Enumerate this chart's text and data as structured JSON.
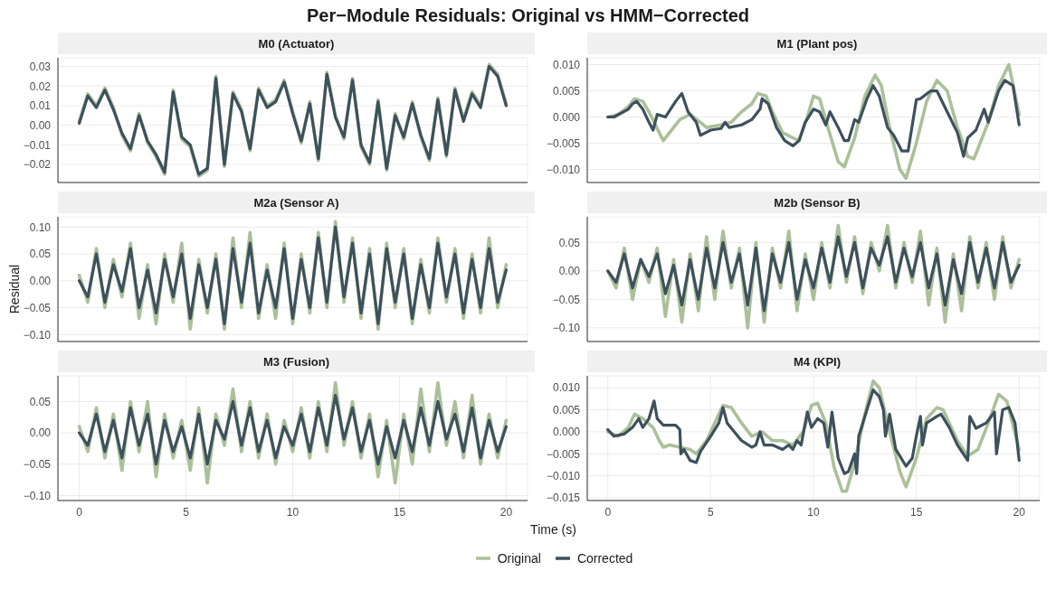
{
  "chart_data": [
    {
      "type": "line",
      "title": "M0 (Actuator)",
      "legend": "bottom",
      "annotations": [
        "Per−Module Residuals: Original vs HMM−Corrected"
      ],
      "tick_labels": "y",
      "grid": true,
      "xlim": [
        -1,
        21
      ],
      "xticks": [
        0,
        5,
        10,
        15,
        20
      ],
      "ylim": [
        -0.0292,
        0.0344
      ],
      "yticks": [
        {
          "value": -0.02,
          "label": "−0.02"
        },
        {
          "value": -0.01,
          "label": "−0.01"
        },
        {
          "value": 0,
          "label": "0.00"
        },
        {
          "value": 0.01,
          "label": "0.01"
        },
        {
          "value": 0.02,
          "label": "0.02"
        },
        {
          "value": 0.03,
          "label": "0.03"
        }
      ],
      "x": [
        0,
        0.4,
        0.8,
        1.2,
        1.6,
        2,
        2.4,
        2.8,
        3.2,
        3.6,
        4,
        4.4,
        4.8,
        5.2,
        5.6,
        6,
        6.4,
        6.8,
        7.2,
        7.6,
        8,
        8.4,
        8.8,
        9.2,
        9.6,
        10,
        10.4,
        10.8,
        11.2,
        11.6,
        12,
        12.4,
        12.8,
        13.2,
        13.6,
        14,
        14.4,
        14.8,
        15.2,
        15.6,
        16,
        16.4,
        16.8,
        17.2,
        17.6,
        18,
        18.4,
        18.8,
        19.2,
        19.6,
        20
      ],
      "series": [
        {
          "name": "Original",
          "color": "#abc09a",
          "values": [
            0.002,
            0.016,
            0.01,
            0.019,
            0.009,
            -0.005,
            -0.013,
            0.006,
            -0.009,
            -0.016,
            -0.025,
            0.018,
            -0.007,
            -0.011,
            -0.026,
            -0.023,
            0.025,
            -0.021,
            0.017,
            0.008,
            -0.013,
            0.019,
            0.01,
            0.013,
            0.023,
            0.007,
            -0.009,
            0.012,
            -0.018,
            0.027,
            0.005,
            -0.007,
            0.024,
            -0.011,
            -0.02,
            0.013,
            -0.023,
            0.006,
            -0.007,
            0.012,
            -0.006,
            -0.018,
            0.014,
            -0.016,
            0.019,
            0.003,
            0.017,
            0.01,
            0.031,
            0.026,
            0.011
          ]
        },
        {
          "name": "Corrected",
          "color": "#3d505c",
          "values": [
            0.001,
            0.015,
            0.009,
            0.018,
            0.008,
            -0.004,
            -0.012,
            0.005,
            -0.008,
            -0.015,
            -0.024,
            0.017,
            -0.006,
            -0.01,
            -0.025,
            -0.022,
            0.024,
            -0.02,
            0.016,
            0.007,
            -0.012,
            0.018,
            0.009,
            0.012,
            0.022,
            0.006,
            -0.008,
            0.011,
            -0.017,
            0.026,
            0.004,
            -0.006,
            0.023,
            -0.01,
            -0.019,
            0.012,
            -0.022,
            0.005,
            -0.006,
            0.011,
            -0.005,
            -0.017,
            0.013,
            -0.015,
            0.018,
            0.002,
            0.016,
            0.009,
            0.03,
            0.025,
            0.01
          ]
        }
      ]
    },
    {
      "type": "line",
      "title": "M1 (Plant pos)",
      "tick_labels": "y",
      "grid": true,
      "xlim": [
        -1,
        21
      ],
      "xticks": [
        0,
        5,
        10,
        15,
        20
      ],
      "ylim": [
        -0.0125,
        0.0113
      ],
      "yticks": [
        {
          "value": -0.01,
          "label": "−0.010"
        },
        {
          "value": -0.005,
          "label": "−0.005"
        },
        {
          "value": 0,
          "label": "0.000"
        },
        {
          "value": 0.005,
          "label": "0.005"
        },
        {
          "value": 0.01,
          "label": "0.010"
        }
      ],
      "series": [
        {
          "color": "#abc09a",
          "x": [
            0,
            0.5,
            1,
            1.3,
            1.7,
            2,
            2.5,
            2.7,
            3,
            3.5,
            4,
            4.5,
            4.8,
            5.5,
            6,
            6.5,
            7,
            7.3,
            7.7,
            8,
            8.5,
            9,
            9.3,
            9.7,
            10,
            10.3,
            10.7,
            11.2,
            11.5,
            12,
            12.5,
            13,
            13.3,
            13.7,
            14.2,
            14.5,
            15,
            15.5,
            16,
            16.5,
            17,
            17.5,
            17.8,
            18.5,
            19,
            19.5,
            20
          ],
          "values": [
            0,
            0.0005,
            0.002,
            0.0035,
            0.003,
            0.001,
            -0.003,
            -0.0045,
            -0.003,
            -0.0005,
            0.0005,
            -0.001,
            -0.002,
            -0.0015,
            -0.001,
            0.001,
            0.0025,
            0.0045,
            0.004,
            0.001,
            -0.003,
            -0.004,
            -0.0045,
            0,
            0.004,
            0.0035,
            -0.002,
            -0.0085,
            -0.0095,
            -0.004,
            0.004,
            0.008,
            0.006,
            -0.002,
            -0.01,
            -0.0117,
            -0.005,
            0.003,
            0.007,
            0.005,
            -0.002,
            -0.0075,
            -0.008,
            -0.001,
            0.006,
            0.01,
            0.0005
          ]
        },
        {
          "color": "#3d505c",
          "x": [
            0,
            0.3,
            1,
            1.2,
            1.4,
            1.7,
            2,
            2.2,
            2.4,
            2.8,
            3.3,
            3.5,
            3.6,
            3.9,
            4.3,
            4.5,
            5,
            5.5,
            5.7,
            5.9,
            6.5,
            7,
            7.4,
            7.5,
            7.8,
            8.2,
            8.6,
            9,
            9.3,
            9.6,
            10,
            10.3,
            10.6,
            10.8,
            11.2,
            11.5,
            11.7,
            12,
            12.2,
            12.6,
            12.9,
            13.2,
            13.6,
            13.9,
            14.3,
            14.6,
            15,
            15.2,
            15.7,
            16,
            16.5,
            17,
            17.3,
            17.5,
            17.9,
            18.3,
            18.5,
            19,
            19.3,
            19.7,
            20
          ],
          "values": [
            0,
            0,
            0.0015,
            0.0025,
            0.003,
            0.0015,
            -0.001,
            -0.0025,
            0.0005,
            0,
            0.003,
            0.004,
            0.0045,
            0.001,
            -0.001,
            -0.0035,
            -0.0025,
            -0.0022,
            -0.001,
            -0.002,
            -0.0015,
            -0.0005,
            0.0015,
            0.0035,
            0.0025,
            -0.002,
            -0.0045,
            -0.0055,
            -0.0045,
            -0.001,
            0.0015,
            0.001,
            -0.0015,
            0.001,
            -0.002,
            -0.0045,
            -0.0045,
            -0.0005,
            -0.001,
            0.0035,
            0.006,
            0.004,
            -0.002,
            -0.0035,
            -0.0065,
            -0.0065,
            0.0033,
            0.0035,
            0.005,
            0.005,
            0.001,
            -0.003,
            -0.0075,
            -0.004,
            -0.0025,
            0.0015,
            -0.001,
            0.005,
            0.007,
            0.006,
            -0.0015
          ]
        }
      ]
    },
    {
      "type": "line",
      "title": "M2a (Sensor A)",
      "ylabel": "Residual",
      "tick_labels": "y",
      "grid": true,
      "xlim": [
        -1,
        21
      ],
      "xticks": [
        0,
        5,
        10,
        15,
        20
      ],
      "ylim": [
        -0.113,
        0.119
      ],
      "yticks": [
        {
          "value": -0.1,
          "label": "−0.10"
        },
        {
          "value": -0.05,
          "label": "−0.05"
        },
        {
          "value": 0,
          "label": "0.00"
        },
        {
          "value": 0.05,
          "label": "0.05"
        },
        {
          "value": 0.1,
          "label": "0.10"
        }
      ],
      "x": [
        0,
        0.4,
        0.8,
        1.2,
        1.6,
        2,
        2.4,
        2.8,
        3.2,
        3.6,
        4,
        4.4,
        4.8,
        5.2,
        5.6,
        6,
        6.4,
        6.8,
        7.2,
        7.6,
        8,
        8.4,
        8.8,
        9.2,
        9.6,
        10,
        10.4,
        10.8,
        11.2,
        11.6,
        12,
        12.4,
        12.8,
        13.2,
        13.6,
        14,
        14.4,
        14.8,
        15.2,
        15.6,
        16,
        16.4,
        16.8,
        17.2,
        17.6,
        18,
        18.4,
        18.8,
        19.2,
        19.6,
        20
      ],
      "series": [
        {
          "color": "#abc09a",
          "values": [
            0.01,
            -0.04,
            0.06,
            -0.05,
            0.04,
            -0.03,
            0.07,
            -0.07,
            0.03,
            -0.08,
            0.05,
            -0.04,
            0.07,
            -0.09,
            0.04,
            -0.06,
            0.05,
            -0.09,
            0.08,
            -0.05,
            0.09,
            -0.07,
            0.03,
            -0.07,
            0.07,
            -0.08,
            0.05,
            -0.06,
            0.09,
            -0.05,
            0.11,
            -0.04,
            0.08,
            -0.07,
            0.06,
            -0.09,
            0.07,
            -0.05,
            0.06,
            -0.08,
            0.04,
            -0.06,
            0.08,
            -0.04,
            0.06,
            -0.07,
            0.05,
            -0.06,
            0.08,
            -0.05,
            0.03
          ]
        },
        {
          "color": "#3d505c",
          "values": [
            0,
            -0.03,
            0.05,
            -0.04,
            0.03,
            -0.02,
            0.06,
            -0.05,
            0.02,
            -0.06,
            0.04,
            -0.03,
            0.05,
            -0.07,
            0.03,
            -0.05,
            0.04,
            -0.08,
            0.06,
            -0.04,
            0.07,
            -0.06,
            0.02,
            -0.05,
            0.06,
            -0.07,
            0.04,
            -0.05,
            0.08,
            -0.04,
            0.1,
            -0.03,
            0.07,
            -0.06,
            0.05,
            -0.08,
            0.06,
            -0.04,
            0.05,
            -0.07,
            0.03,
            -0.05,
            0.07,
            -0.03,
            0.05,
            -0.06,
            0.04,
            -0.05,
            0.06,
            -0.04,
            0.02
          ]
        }
      ]
    },
    {
      "type": "line",
      "title": "M2b (Sensor B)",
      "tick_labels": "y",
      "grid": true,
      "xlim": [
        -1,
        21
      ],
      "xticks": [
        0,
        5,
        10,
        15,
        20
      ],
      "ylim": [
        -0.124,
        0.095
      ],
      "yticks": [
        {
          "value": -0.1,
          "label": "−0.10"
        },
        {
          "value": -0.05,
          "label": "−0.05"
        },
        {
          "value": 0,
          "label": "0.00"
        },
        {
          "value": 0.05,
          "label": "0.05"
        }
      ],
      "x": [
        0,
        0.4,
        0.8,
        1.2,
        1.6,
        2,
        2.4,
        2.8,
        3.2,
        3.6,
        4,
        4.4,
        4.8,
        5.2,
        5.6,
        6,
        6.4,
        6.8,
        7.2,
        7.6,
        8,
        8.4,
        8.8,
        9.2,
        9.6,
        10,
        10.4,
        10.8,
        11.2,
        11.6,
        12,
        12.4,
        12.8,
        13.2,
        13.6,
        14,
        14.4,
        14.8,
        15.2,
        15.6,
        16,
        16.4,
        16.8,
        17.2,
        17.6,
        18,
        18.4,
        18.8,
        19.2,
        19.6,
        20
      ],
      "series": [
        {
          "color": "#abc09a",
          "values": [
            0,
            -0.03,
            0.04,
            -0.05,
            0.02,
            -0.02,
            0.04,
            -0.08,
            0.02,
            -0.09,
            0.03,
            -0.07,
            0.06,
            -0.05,
            0.07,
            -0.03,
            0.04,
            -0.1,
            0.05,
            -0.09,
            0.04,
            -0.03,
            0.07,
            -0.07,
            0.03,
            -0.05,
            0.05,
            -0.03,
            0.08,
            -0.02,
            0.06,
            -0.04,
            0.05,
            0,
            0.08,
            -0.03,
            0.05,
            -0.02,
            0.07,
            -0.06,
            0.04,
            -0.09,
            0.03,
            -0.07,
            0.06,
            -0.03,
            0.05,
            -0.05,
            0.06,
            -0.03,
            0.02
          ]
        },
        {
          "color": "#3d505c",
          "values": [
            0,
            -0.02,
            0.03,
            -0.03,
            0.02,
            -0.01,
            0.03,
            -0.04,
            0.01,
            -0.06,
            0.02,
            -0.05,
            0.04,
            -0.03,
            0.05,
            -0.02,
            0.03,
            -0.06,
            0.04,
            -0.07,
            0.03,
            -0.02,
            0.05,
            -0.05,
            0.02,
            -0.03,
            0.04,
            -0.02,
            0.06,
            -0.01,
            0.05,
            -0.03,
            0.04,
            0.01,
            0.06,
            -0.02,
            0.04,
            -0.01,
            0.05,
            -0.03,
            0.03,
            -0.06,
            0.02,
            -0.04,
            0.05,
            -0.02,
            0.04,
            -0.03,
            0.05,
            -0.02,
            0.01
          ]
        }
      ]
    },
    {
      "type": "line",
      "title": "M3 (Fusion)",
      "xlabel": "Time (s)",
      "grid": true,
      "xlim": [
        -1,
        21
      ],
      "xticks": [
        0,
        5,
        10,
        15,
        20
      ],
      "ylim": [
        -0.108,
        0.091
      ],
      "yticks": [
        {
          "value": -0.1,
          "label": "−0.10"
        },
        {
          "value": -0.05,
          "label": "−0.05"
        },
        {
          "value": 0,
          "label": "0.00"
        },
        {
          "value": 0.05,
          "label": "0.05"
        }
      ],
      "x": [
        0,
        0.4,
        0.8,
        1.2,
        1.6,
        2,
        2.4,
        2.8,
        3.2,
        3.6,
        4,
        4.4,
        4.8,
        5.2,
        5.6,
        6,
        6.4,
        6.8,
        7.2,
        7.6,
        8,
        8.4,
        8.8,
        9.2,
        9.6,
        10,
        10.4,
        10.8,
        11.2,
        11.6,
        12,
        12.4,
        12.8,
        13.2,
        13.6,
        14,
        14.4,
        14.8,
        15.2,
        15.6,
        16,
        16.4,
        16.8,
        17.2,
        17.6,
        18,
        18.4,
        18.8,
        19.2,
        19.6,
        20
      ],
      "series": [
        {
          "color": "#abc09a",
          "values": [
            0.01,
            -0.03,
            0.04,
            -0.04,
            0.03,
            -0.06,
            0.05,
            -0.03,
            0.05,
            -0.07,
            0.03,
            -0.04,
            0.02,
            -0.06,
            0.04,
            -0.08,
            0.03,
            -0.02,
            0.07,
            -0.03,
            0.05,
            -0.04,
            0.03,
            -0.05,
            0.02,
            -0.03,
            0.04,
            -0.04,
            0.05,
            -0.03,
            0.08,
            -0.02,
            0.05,
            -0.04,
            0.03,
            -0.07,
            0.02,
            -0.08,
            0.03,
            -0.05,
            0.07,
            -0.03,
            0.08,
            -0.02,
            0.05,
            -0.04,
            0.06,
            -0.05,
            0.03,
            -0.04,
            0.02
          ]
        },
        {
          "color": "#3d505c",
          "values": [
            0,
            -0.02,
            0.03,
            -0.03,
            0.02,
            -0.04,
            0.04,
            -0.02,
            0.03,
            -0.05,
            0.02,
            -0.03,
            0.01,
            -0.04,
            0.03,
            -0.05,
            0.02,
            -0.01,
            0.05,
            -0.02,
            0.04,
            -0.03,
            0.02,
            -0.04,
            0.01,
            -0.02,
            0.03,
            -0.03,
            0.04,
            -0.02,
            0.06,
            -0.01,
            0.04,
            -0.03,
            0.02,
            -0.05,
            0.01,
            -0.04,
            0.02,
            -0.03,
            0.04,
            -0.02,
            0.05,
            -0.01,
            0.03,
            -0.03,
            0.04,
            -0.04,
            0.02,
            -0.03,
            0.01
          ]
        }
      ]
    },
    {
      "type": "line",
      "title": "M4 (KPI)",
      "grid": true,
      "xlim": [
        -1,
        21
      ],
      "xticks": [
        0,
        5,
        10,
        15,
        20
      ],
      "ylim": [
        -0.0156,
        0.0127
      ],
      "yticks": [
        {
          "value": -0.015,
          "label": "−0.015"
        },
        {
          "value": -0.01,
          "label": "−0.010"
        },
        {
          "value": -0.005,
          "label": "−0.005"
        },
        {
          "value": 0,
          "label": "0.000"
        },
        {
          "value": 0.005,
          "label": "0.005"
        },
        {
          "value": 0.01,
          "label": "0.010"
        }
      ],
      "series": [
        {
          "color": "#abc09a",
          "x": [
            0,
            0.5,
            1,
            1.3,
            1.7,
            2.2,
            2.5,
            2.7,
            3,
            3.5,
            4,
            4.3,
            4.8,
            5.2,
            5.6,
            6,
            6.5,
            7,
            7.5,
            8,
            8.5,
            9,
            9.5,
            9.9,
            10.2,
            10.6,
            11,
            11.4,
            11.6,
            12,
            12.5,
            12.9,
            13.2,
            13.7,
            14.2,
            14.5,
            15,
            15.5,
            16,
            16.3,
            17,
            17.5,
            18,
            18.5,
            19,
            19.4,
            20
          ],
          "values": [
            0,
            -0.001,
            0.001,
            0.004,
            0.003,
            0.001,
            -0.002,
            -0.0035,
            -0.003,
            -0.0035,
            -0.004,
            -0.005,
            -0.002,
            0.002,
            0.006,
            0.0055,
            0.002,
            -0.001,
            0,
            -0.002,
            -0.002,
            -0.003,
            0,
            0.006,
            0.0065,
            0.002,
            -0.008,
            -0.0135,
            -0.0135,
            -0.007,
            0.004,
            0.0115,
            0.01,
            0,
            -0.009,
            -0.0125,
            -0.006,
            0.003,
            0.0055,
            0.005,
            -0.002,
            -0.0055,
            -0.004,
            0.002,
            0.0085,
            0.007,
            -0.004
          ]
        },
        {
          "color": "#3d505c",
          "x": [
            0,
            0.3,
            0.8,
            1.2,
            1.5,
            1.7,
            2,
            2.25,
            2.4,
            2.7,
            3.3,
            3.5,
            3.55,
            3.7,
            4,
            4.3,
            4.5,
            5,
            5.4,
            5.6,
            5.8,
            6.5,
            7,
            7.2,
            7.4,
            7.6,
            8,
            8.5,
            8.8,
            9,
            9.2,
            9.4,
            9.6,
            9.7,
            9.9,
            10.2,
            10.5,
            10.7,
            10.9,
            11.2,
            11.5,
            11.7,
            12,
            12.1,
            12.2,
            12.6,
            12.9,
            13.2,
            13.4,
            13.5,
            13.7,
            14,
            14.5,
            14.8,
            15,
            15.2,
            15.3,
            15.5,
            16,
            16.2,
            16.6,
            17,
            17.5,
            17.6,
            17.9,
            18.4,
            18.8,
            18.9,
            19.2,
            19.5,
            19.8,
            20
          ],
          "values": [
            0.0005,
            -0.001,
            -0.0005,
            0.001,
            0.003,
            0.001,
            0.003,
            0.007,
            0.003,
            0.0015,
            0.0015,
            0.0005,
            -0.005,
            -0.004,
            -0.0065,
            -0.007,
            -0.0045,
            -0.001,
            0.002,
            0.0055,
            0.002,
            -0.002,
            -0.0035,
            -0.003,
            0,
            -0.003,
            -0.003,
            -0.004,
            -0.003,
            -0.004,
            -0.002,
            -0.003,
            0.002,
            0.0045,
            0.001,
            0.003,
            0.002,
            -0.0035,
            0.0045,
            -0.006,
            -0.0095,
            -0.009,
            -0.005,
            -0.0095,
            -0.001,
            0.005,
            0.0095,
            0.008,
            0.005,
            -0.001,
            0.004,
            -0.004,
            -0.0078,
            -0.006,
            -0.001,
            0.0035,
            -0.003,
            0.002,
            0.0035,
            0.004,
            0.001,
            -0.003,
            -0.0065,
            0.0035,
            0.0008,
            0.002,
            0.0045,
            -0.005,
            0.005,
            0.0055,
            0.002,
            -0.0065
          ]
        }
      ]
    }
  ]
}
